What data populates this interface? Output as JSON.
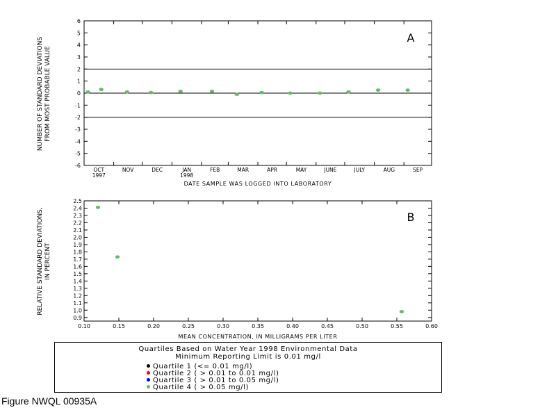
{
  "figure_caption": "Figure NWQL 00935A",
  "legend": {
    "title_line1": "Quartiles Based on Water Year 1998 Environmental Data",
    "title_line2": "Minimum Reporting Limit is 0.01 mg/l",
    "items": [
      {
        "label": "Quartile 1 (<= 0.01              mg/l)",
        "color": "#000000"
      },
      {
        "label": "Quartile 2 ( > 0.01 to 0.01   mg/l)",
        "color": "#ff0000"
      },
      {
        "label": "Quartile 3 ( > 0.01 to 0.05 mg/l)",
        "color": "#0000ff"
      },
      {
        "label": "Quartile 4 ( > 0.05                  mg/l)",
        "color": "#66bb66"
      }
    ]
  },
  "chart_data": [
    {
      "type": "scatter",
      "panel_label": "A",
      "ylabel_line1": "NUMBER OF STANDARD DEVIATIONS",
      "ylabel_line2": "FROM MOST PROBABLE VALUE",
      "xlabel": "DATE SAMPLE WAS LOGGED INTO LABORATORY",
      "ylim": [
        -6,
        6
      ],
      "xlim": [
        "1997-10-01",
        "1998-09-30"
      ],
      "yticks": [
        -6,
        -5,
        -4,
        -3,
        -2,
        -1,
        0,
        1,
        2,
        3,
        4,
        5,
        6
      ],
      "ytick_labels": [
        "-6",
        "-5",
        "-4",
        "-3",
        "-2",
        "-1",
        "0",
        "1",
        "2",
        "3",
        "4",
        "5",
        "6"
      ],
      "month_labels": [
        "OCT",
        "NOV",
        "DEC",
        "JAN",
        "FEB",
        "MAR",
        "APR",
        "MAY",
        "JUNE",
        "JULY",
        "AUG",
        "SEP"
      ],
      "year_labels": [
        {
          "month": "OCT",
          "text": "1997"
        },
        {
          "month": "JAN",
          "text": "1998"
        }
      ],
      "reference_lines": [
        2,
        0,
        -2
      ],
      "points": [
        {
          "x": "1997-10-05",
          "y": 0.1,
          "color": "#66bb66"
        },
        {
          "x": "1997-10-19",
          "y": 0.3,
          "color": "#66bb66"
        },
        {
          "x": "1997-11-15",
          "y": 0.1,
          "color": "#66bb66"
        },
        {
          "x": "1997-12-10",
          "y": 0.05,
          "color": "#66bb66"
        },
        {
          "x": "1998-01-10",
          "y": 0.15,
          "color": "#66bb66"
        },
        {
          "x": "1998-02-12",
          "y": 0.15,
          "color": "#66bb66"
        },
        {
          "x": "1998-03-10",
          "y": -0.1,
          "color": "#66bb66"
        },
        {
          "x": "1998-04-05",
          "y": 0.05,
          "color": "#66bb66"
        },
        {
          "x": "1998-05-05",
          "y": 0.0,
          "color": "#66bb66"
        },
        {
          "x": "1998-06-05",
          "y": 0.0,
          "color": "#66bb66"
        },
        {
          "x": "1998-07-05",
          "y": 0.1,
          "color": "#66bb66"
        },
        {
          "x": "1998-08-05",
          "y": 0.25,
          "color": "#66bb66"
        },
        {
          "x": "1998-09-05",
          "y": 0.25,
          "color": "#66bb66"
        }
      ],
      "grid": false
    },
    {
      "type": "scatter",
      "panel_label": "B",
      "ylabel_line1": "RELATIVE STANDARD DEVIATIONS,",
      "ylabel_line2": "IN PERCENT",
      "xlabel": "MEAN CONCENTRATION, IN MILLIGRAMS PER LITER",
      "xlim": [
        0.1,
        0.6
      ],
      "ylim": [
        0.85,
        2.5
      ],
      "xticks": [
        0.1,
        0.15,
        0.2,
        0.25,
        0.3,
        0.35,
        0.4,
        0.45,
        0.5,
        0.55,
        0.6
      ],
      "xtick_labels": [
        "0.10",
        "0.15",
        "0.20",
        "0.25",
        "0.30",
        "0.35",
        "0.40",
        "0.45",
        "0.50",
        "0.55",
        "0.60"
      ],
      "yticks": [
        0.9,
        1.0,
        1.1,
        1.2,
        1.3,
        1.4,
        1.5,
        1.6,
        1.7,
        1.8,
        1.9,
        2.0,
        2.1,
        2.2,
        2.3,
        2.4,
        2.5
      ],
      "ytick_labels": [
        "0.9",
        "1.0",
        "1.1",
        "1.2",
        "1.3",
        "1.4",
        "1.5",
        "1.6",
        "1.7",
        "1.8",
        "1.9",
        "2.0",
        "2.1",
        "2.2",
        "2.3",
        "2.4",
        "2.5"
      ],
      "points": [
        {
          "x": 0.12,
          "y": 2.41,
          "color": "#66bb66"
        },
        {
          "x": 0.148,
          "y": 1.73,
          "color": "#66bb66"
        },
        {
          "x": 0.557,
          "y": 0.98,
          "color": "#66bb66"
        }
      ],
      "grid": false
    }
  ]
}
